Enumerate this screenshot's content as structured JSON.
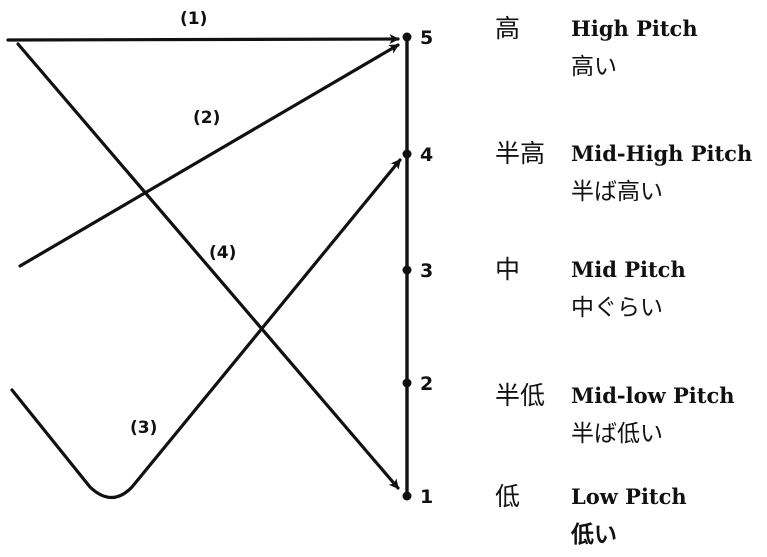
{
  "scale": {
    "levels": [
      {
        "number": "5",
        "cjk": "高",
        "english": "High Pitch",
        "japanese": "高い"
      },
      {
        "number": "4",
        "cjk": "半高",
        "english": "Mid-High Pitch",
        "japanese": "半ば高い"
      },
      {
        "number": "3",
        "cjk": "中",
        "english": "Mid Pitch",
        "japanese": "中ぐらい"
      },
      {
        "number": "2",
        "cjk": "半低",
        "english": "Mid-low Pitch",
        "japanese": "半ば低い"
      },
      {
        "number": "1",
        "cjk": "低",
        "english": "Low Pitch",
        "japanese": "低い"
      }
    ]
  },
  "contours": [
    {
      "label": "(1)",
      "from_level": 5,
      "to_level": 5
    },
    {
      "label": "(2)",
      "from_level": 3,
      "to_level": 5
    },
    {
      "label": "(3)",
      "from_level": 2,
      "to_level": 4,
      "dip_level": 1
    },
    {
      "label": "(4)",
      "from_level": 5,
      "to_level": 1
    }
  ]
}
